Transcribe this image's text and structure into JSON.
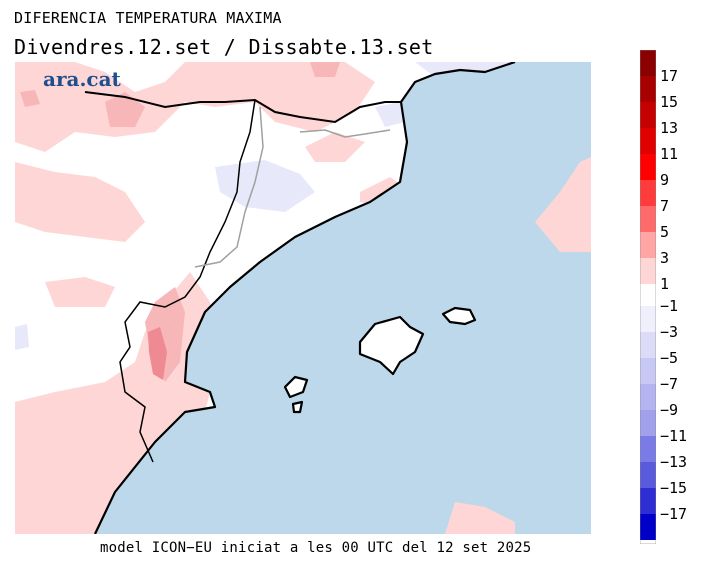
{
  "header": {
    "title": "DIFERENCIA TEMPERATURA MAXIMA",
    "subtitle": "Divendres.12.set / Dissabte.13.set"
  },
  "map": {
    "brand": "ara.cat",
    "colors": {
      "sea": "#bcd8ea",
      "land": "#ffffff",
      "warm_light": "#ffd6d6",
      "warm_mid": "#f7b6b8",
      "warm_strong": "#ef8a92",
      "cool_light": "#e8e8fb",
      "coast": "#000000",
      "border": "#a0a0a0"
    }
  },
  "legend": {
    "positive": {
      "labels": [
        "17",
        "15",
        "13",
        "11",
        "9",
        "7",
        "5",
        "3",
        "1"
      ],
      "colors": [
        "#8b0000",
        "#a80000",
        "#c40000",
        "#e00000",
        "#ff0000",
        "#ff3c3c",
        "#ff6b6b",
        "#ffa5a5",
        "#ffd6d6"
      ]
    },
    "negative": {
      "labels": [
        "−1",
        "−3",
        "−5",
        "−7",
        "−9",
        "−11",
        "−13",
        "−15",
        "−17"
      ],
      "colors": [
        "#f0f0fd",
        "#dcdcf8",
        "#c8c8f5",
        "#b4b4f0",
        "#a0a0eb",
        "#7b7be6",
        "#5a5adc",
        "#2e2ed2",
        "#0000c8"
      ]
    }
  },
  "footer": {
    "text": "model ICON−EU iniciat a les 00 UTC del 12 set 2025"
  }
}
